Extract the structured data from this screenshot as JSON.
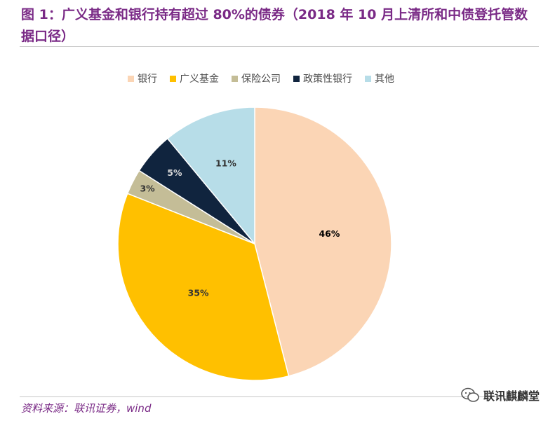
{
  "header": {
    "title": "图 1：广义基金和银行持有超过 80%的债券（2018 年 10 月上清所和中债登托管数据口径）"
  },
  "footer": {
    "source": "资料来源：联讯证券，wind",
    "watermark": "联讯麒麟堂"
  },
  "colors": {
    "title": "#7a2a86",
    "银行": "#fbd5b5",
    "广义基金": "#ffc000",
    "保险公司": "#c4bd97",
    "政策性银行": "#10243e",
    "其他": "#b7dde8"
  },
  "chart_data": {
    "type": "pie",
    "title": "",
    "legend_position": "top",
    "start_angle": "12 o'clock, clockwise",
    "categories": [
      "银行",
      "广义基金",
      "保险公司",
      "政策性银行",
      "其他"
    ],
    "values": [
      46,
      35,
      3,
      5,
      11
    ],
    "labels": [
      "46%",
      "35%",
      "3%",
      "5%",
      "11%"
    ],
    "unit": "%",
    "colors": [
      "#fbd5b5",
      "#ffc000",
      "#c4bd97",
      "#10243e",
      "#b7dde8"
    ],
    "label_colors": [
      "#000000",
      "#333333",
      "#333333",
      "#d9d9d9",
      "#333333"
    ]
  }
}
